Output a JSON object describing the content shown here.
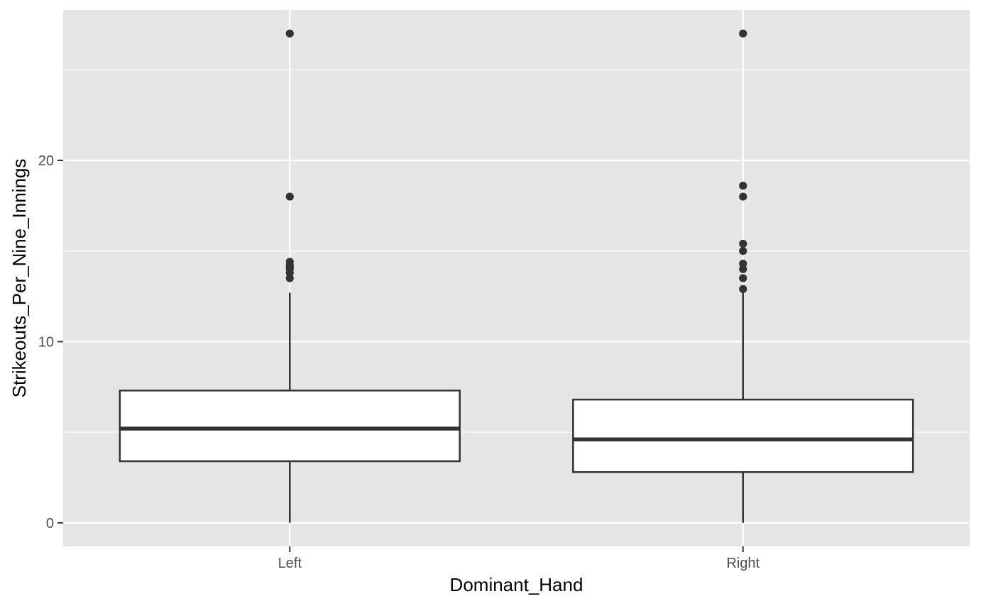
{
  "chart_data": {
    "type": "boxplot",
    "title": "",
    "xlabel": "Dominant_Hand",
    "ylabel": "Strikeouts_Per_Nine_Innings",
    "categories": [
      "Left",
      "Right"
    ],
    "ylim": [
      -1.3,
      28.3
    ],
    "yticks": [
      0,
      10,
      20
    ],
    "yticks_minor": [
      5,
      15,
      25
    ],
    "grid": true,
    "legend": "none",
    "boxes": [
      {
        "category": "Left",
        "whisker_low": 0,
        "q1": 3.4,
        "median": 5.2,
        "q3": 7.3,
        "whisker_high": 12.7,
        "outliers": [
          27.0,
          18.0,
          14.4,
          14.2,
          14.1,
          14.0,
          13.8,
          13.5
        ]
      },
      {
        "category": "Right",
        "whisker_low": 0,
        "q1": 2.8,
        "median": 4.6,
        "q3": 6.8,
        "whisker_high": 12.7,
        "outliers": [
          27.0,
          18.6,
          18.0,
          15.4,
          15.0,
          14.3,
          14.0,
          13.5,
          12.9
        ]
      }
    ],
    "colors": {
      "panel_bg": "#e5e5e5",
      "grid": "#ffffff",
      "box_fill": "#ffffff",
      "box_stroke": "#333333",
      "outlier": "#333333"
    }
  }
}
